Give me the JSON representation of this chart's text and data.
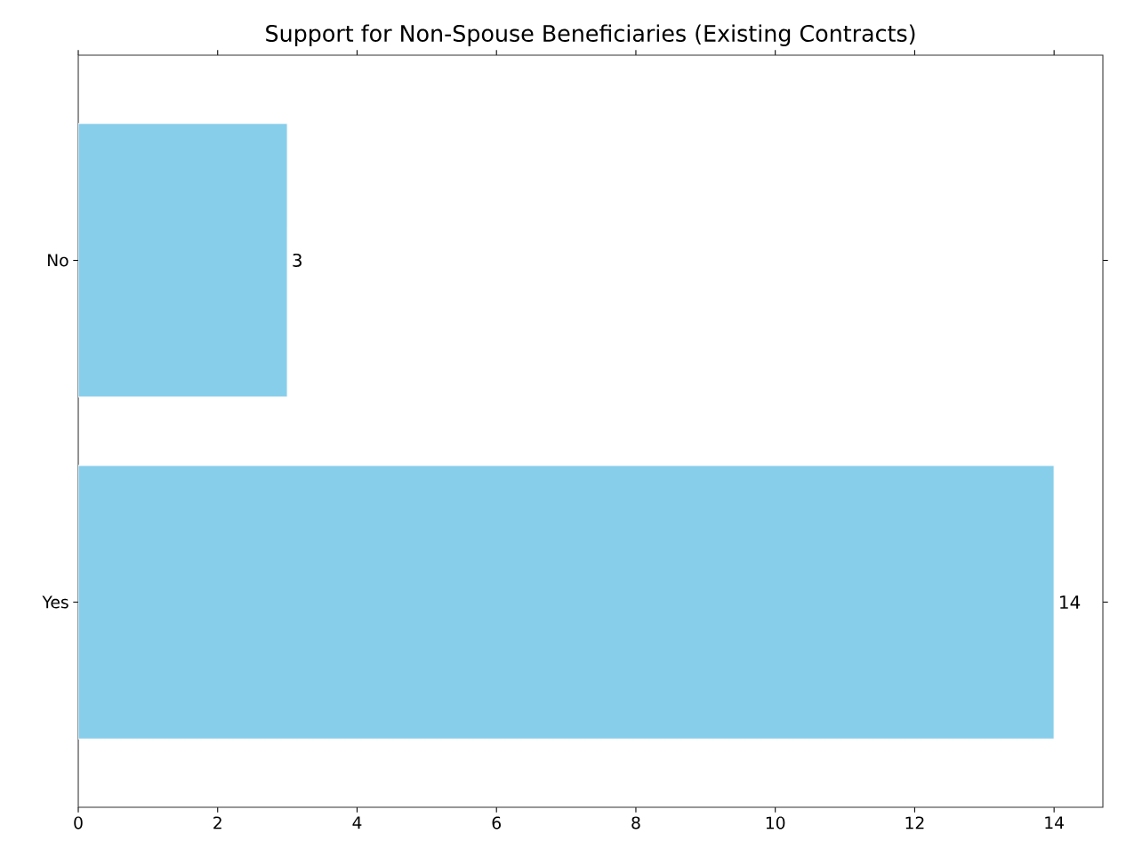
{
  "chart_data": {
    "type": "bar",
    "orientation": "horizontal",
    "title": "Support for Non-Spouse Beneficiaries (Existing Contracts)",
    "categories": [
      "No",
      "Yes"
    ],
    "values": [
      3,
      14
    ],
    "color": "#87ceeb",
    "xlim": [
      0,
      14.7
    ],
    "xticks": [
      0,
      2,
      4,
      6,
      8,
      10,
      12,
      14
    ],
    "data_labels": true
  }
}
